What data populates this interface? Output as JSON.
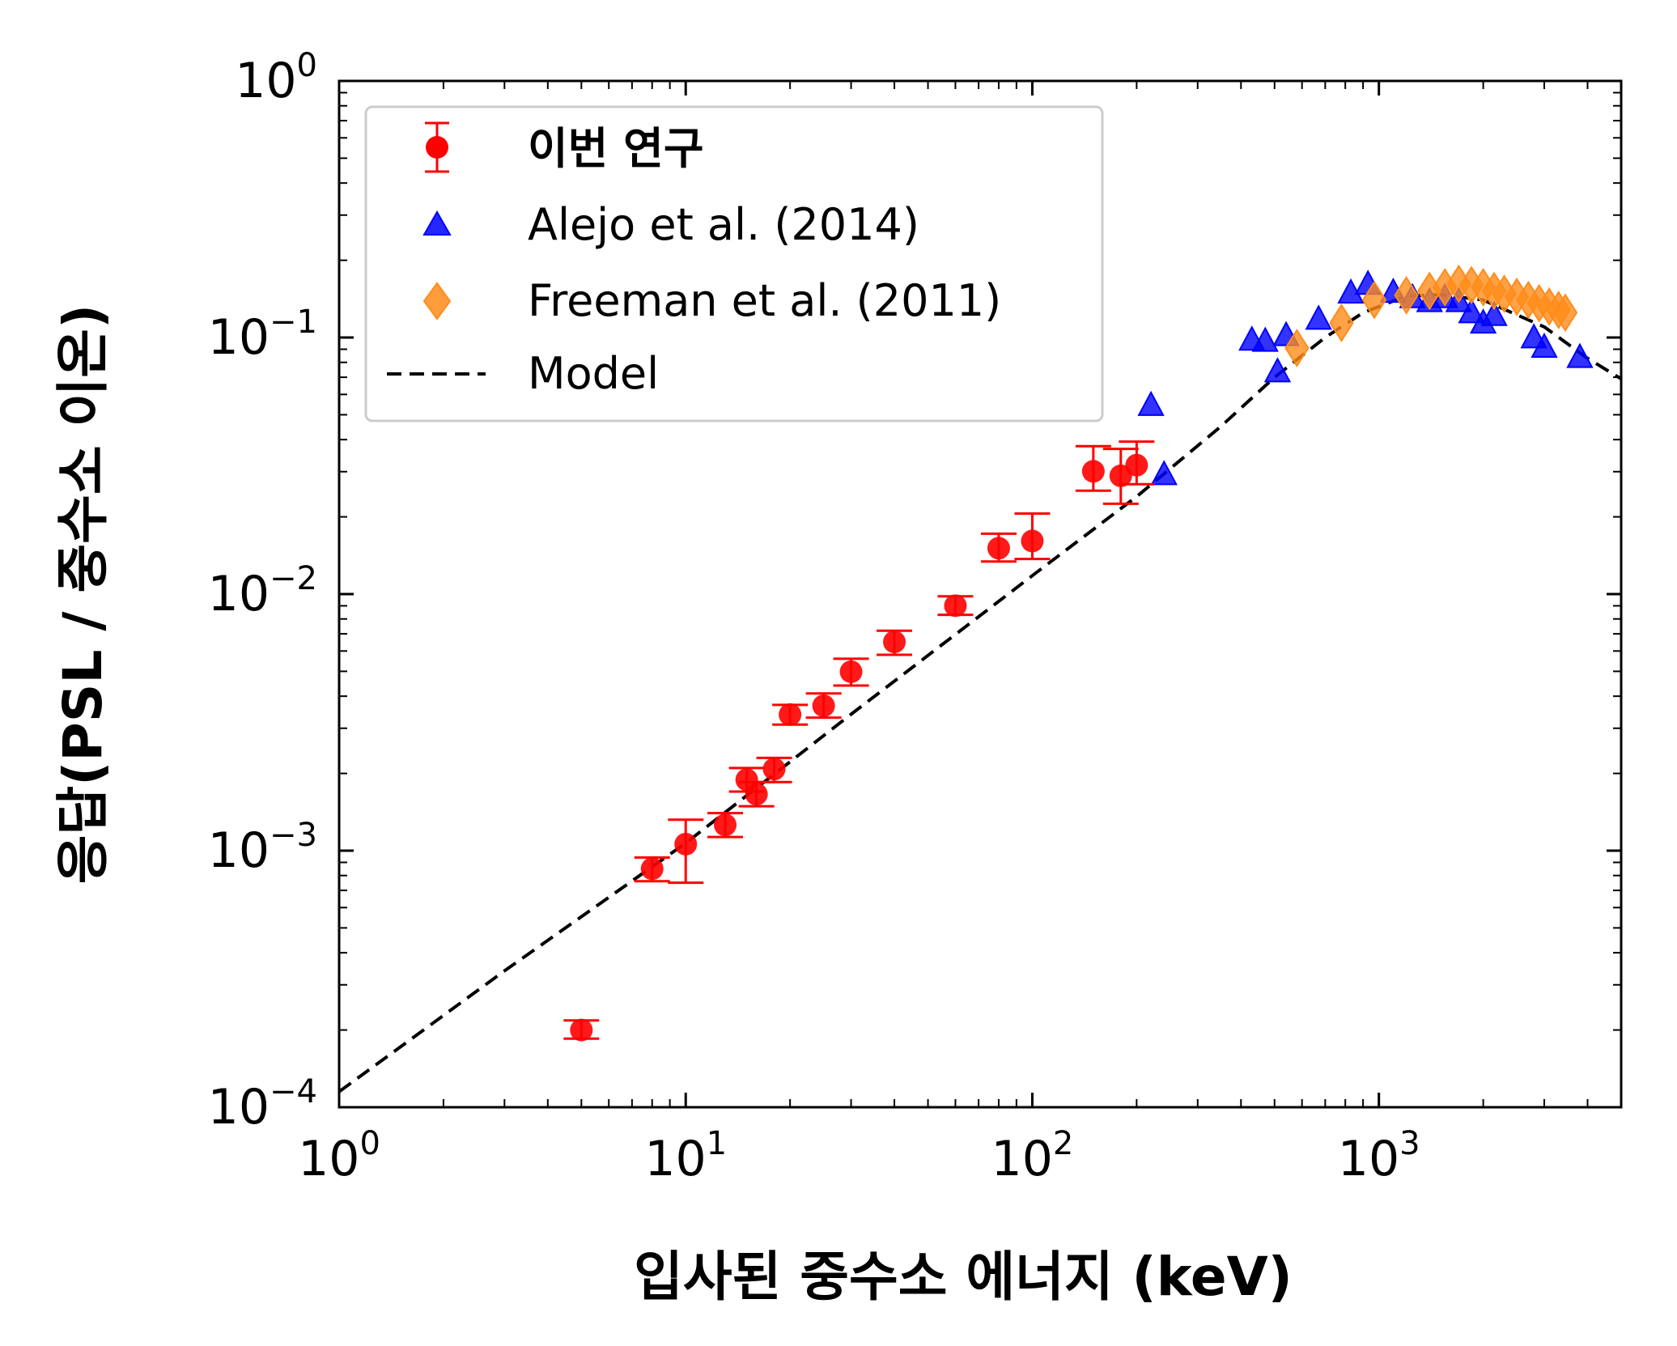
{
  "chart_data": {
    "type": "scatter",
    "xscale": "log",
    "yscale": "log",
    "xlim": [
      1,
      5000
    ],
    "ylim": [
      0.0001,
      1
    ],
    "xlabel": "입사된 중수소 에너지 (keV)",
    "ylabel": "응답(PSL / 중수소 이온)",
    "xticks": [
      {
        "value": 1,
        "base": "10",
        "exp": "0"
      },
      {
        "value": 10,
        "base": "10",
        "exp": "1"
      },
      {
        "value": 100,
        "base": "10",
        "exp": "2"
      },
      {
        "value": 1000,
        "base": "10",
        "exp": "3"
      }
    ],
    "yticks": [
      {
        "value": 1,
        "base": "10",
        "exp": "0"
      },
      {
        "value": 0.1,
        "base": "10",
        "exp": "−1"
      },
      {
        "value": 0.01,
        "base": "10",
        "exp": "−2"
      },
      {
        "value": 0.001,
        "base": "10",
        "exp": "−3"
      },
      {
        "value": 0.0001,
        "base": "10",
        "exp": "−4"
      }
    ],
    "legend_position": "upper-left",
    "series": [
      {
        "name": "이번 연구",
        "marker": "circle",
        "color": "#ff0000",
        "points": [
          {
            "x": 5,
            "y": 0.0002,
            "lo": 0.000185,
            "hi": 0.000218
          },
          {
            "x": 8,
            "y": 0.00085,
            "lo": 0.00076,
            "hi": 0.00094
          },
          {
            "x": 10,
            "y": 0.00106,
            "lo": 0.00075,
            "hi": 0.00132
          },
          {
            "x": 13,
            "y": 0.00126,
            "lo": 0.00113,
            "hi": 0.0014
          },
          {
            "x": 15,
            "y": 0.00189,
            "lo": 0.0017,
            "hi": 0.0021
          },
          {
            "x": 16,
            "y": 0.00166,
            "lo": 0.00149,
            "hi": 0.00185
          },
          {
            "x": 18,
            "y": 0.00208,
            "lo": 0.00185,
            "hi": 0.0023
          },
          {
            "x": 20,
            "y": 0.00339,
            "lo": 0.0031,
            "hi": 0.0037
          },
          {
            "x": 25,
            "y": 0.00367,
            "lo": 0.0033,
            "hi": 0.0041
          },
          {
            "x": 30,
            "y": 0.00498,
            "lo": 0.0044,
            "hi": 0.0056
          },
          {
            "x": 40,
            "y": 0.00651,
            "lo": 0.0058,
            "hi": 0.0072
          },
          {
            "x": 60,
            "y": 0.00901,
            "lo": 0.0083,
            "hi": 0.0098
          },
          {
            "x": 80,
            "y": 0.0151,
            "lo": 0.0134,
            "hi": 0.0172
          },
          {
            "x": 100,
            "y": 0.0161,
            "lo": 0.0137,
            "hi": 0.0206
          },
          {
            "x": 150,
            "y": 0.0301,
            "lo": 0.0253,
            "hi": 0.0377
          },
          {
            "x": 180,
            "y": 0.0289,
            "lo": 0.0225,
            "hi": 0.0368
          },
          {
            "x": 200,
            "y": 0.0318,
            "lo": 0.0268,
            "hi": 0.0393
          }
        ]
      },
      {
        "name": "Alejo et al. (2014)",
        "marker": "triangle",
        "color": "#0000ff",
        "points": [
          {
            "x": 220,
            "y": 0.054
          },
          {
            "x": 240,
            "y": 0.029
          },
          {
            "x": 430,
            "y": 0.097
          },
          {
            "x": 470,
            "y": 0.096
          },
          {
            "x": 510,
            "y": 0.073
          },
          {
            "x": 540,
            "y": 0.101
          },
          {
            "x": 670,
            "y": 0.117
          },
          {
            "x": 830,
            "y": 0.148
          },
          {
            "x": 930,
            "y": 0.16
          },
          {
            "x": 1100,
            "y": 0.149
          },
          {
            "x": 1250,
            "y": 0.142
          },
          {
            "x": 1400,
            "y": 0.137
          },
          {
            "x": 1550,
            "y": 0.142
          },
          {
            "x": 1700,
            "y": 0.137
          },
          {
            "x": 1850,
            "y": 0.124
          },
          {
            "x": 2000,
            "y": 0.113
          },
          {
            "x": 2150,
            "y": 0.121
          },
          {
            "x": 2800,
            "y": 0.099
          },
          {
            "x": 3000,
            "y": 0.091
          },
          {
            "x": 3800,
            "y": 0.083
          }
        ]
      },
      {
        "name": "Freeman et al. (2011)",
        "marker": "diamond",
        "color": "#ff8c1a",
        "points": [
          {
            "x": 580,
            "y": 0.091
          },
          {
            "x": 780,
            "y": 0.114
          },
          {
            "x": 970,
            "y": 0.14
          },
          {
            "x": 1200,
            "y": 0.146
          },
          {
            "x": 1400,
            "y": 0.152
          },
          {
            "x": 1550,
            "y": 0.157
          },
          {
            "x": 1700,
            "y": 0.162
          },
          {
            "x": 1850,
            "y": 0.16
          },
          {
            "x": 2000,
            "y": 0.157
          },
          {
            "x": 2150,
            "y": 0.152
          },
          {
            "x": 2300,
            "y": 0.148
          },
          {
            "x": 2500,
            "y": 0.144
          },
          {
            "x": 2700,
            "y": 0.14
          },
          {
            "x": 2900,
            "y": 0.136
          },
          {
            "x": 3100,
            "y": 0.132
          },
          {
            "x": 3300,
            "y": 0.128
          },
          {
            "x": 3450,
            "y": 0.125
          }
        ]
      },
      {
        "name": "Model",
        "marker": "dashed-line",
        "color": "#000000",
        "points": [
          {
            "x": 1,
            "y": 0.000115
          },
          {
            "x": 3,
            "y": 0.00034
          },
          {
            "x": 10,
            "y": 0.00107
          },
          {
            "x": 30,
            "y": 0.0034
          },
          {
            "x": 100,
            "y": 0.0118
          },
          {
            "x": 200,
            "y": 0.024
          },
          {
            "x": 350,
            "y": 0.045
          },
          {
            "x": 500,
            "y": 0.07
          },
          {
            "x": 700,
            "y": 0.1
          },
          {
            "x": 900,
            "y": 0.125
          },
          {
            "x": 1200,
            "y": 0.145
          },
          {
            "x": 1500,
            "y": 0.147
          },
          {
            "x": 2000,
            "y": 0.14
          },
          {
            "x": 3000,
            "y": 0.11
          },
          {
            "x": 4000,
            "y": 0.083
          },
          {
            "x": 5000,
            "y": 0.069
          }
        ]
      }
    ]
  }
}
